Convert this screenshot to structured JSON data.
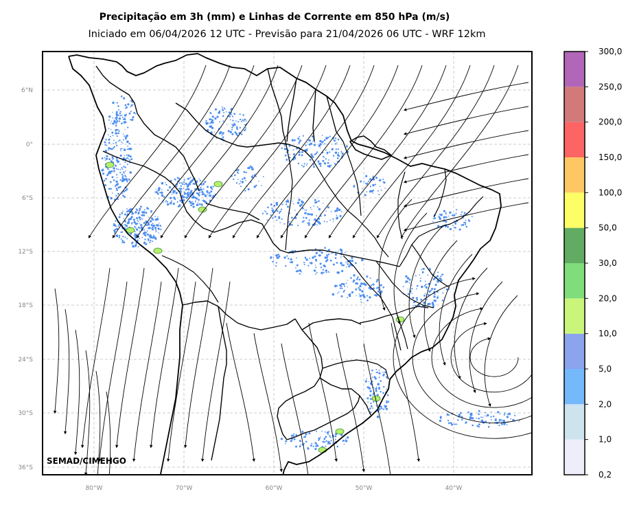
{
  "title": "Precipitação em 3h (mm) e Linhas de Corrente em 850 hPa (m/s)",
  "subtitle": "Iniciado em 06/04/2026 12 UTC - Previsão para 21/04/2026 06 UTC - WRF 12km",
  "credit": "SEMAD/CIMEHGO",
  "lat_ticks": [
    "6°N",
    "0°",
    "6°S",
    "12°S",
    "18°S",
    "24°S",
    "30°S",
    "36°S"
  ],
  "lon_ticks": [
    "80°W",
    "70°W",
    "60°W",
    "50°W",
    "40°W"
  ],
  "colorbar": {
    "labels": [
      "0,2",
      "1,0",
      "2,0",
      "5,0",
      "10,0",
      "20,0",
      "30,0",
      "50,0",
      "100,0",
      "150,0",
      "200,0",
      "250,0",
      "300,0"
    ],
    "colors": [
      "#eeeefa",
      "#cde3ee",
      "#74b9fc",
      "#8ca4ee",
      "#c8f57a",
      "#80dd7c",
      "#62ab62",
      "#fdfd66",
      "#fdc864",
      "#fd6464",
      "#d17a79",
      "#b166b8"
    ]
  },
  "precip_color": "#4f8ff0",
  "map_extent": {
    "lon_range": [
      -85.7,
      -31.3
    ],
    "lat_range": [
      -36.9,
      10.2
    ]
  }
}
